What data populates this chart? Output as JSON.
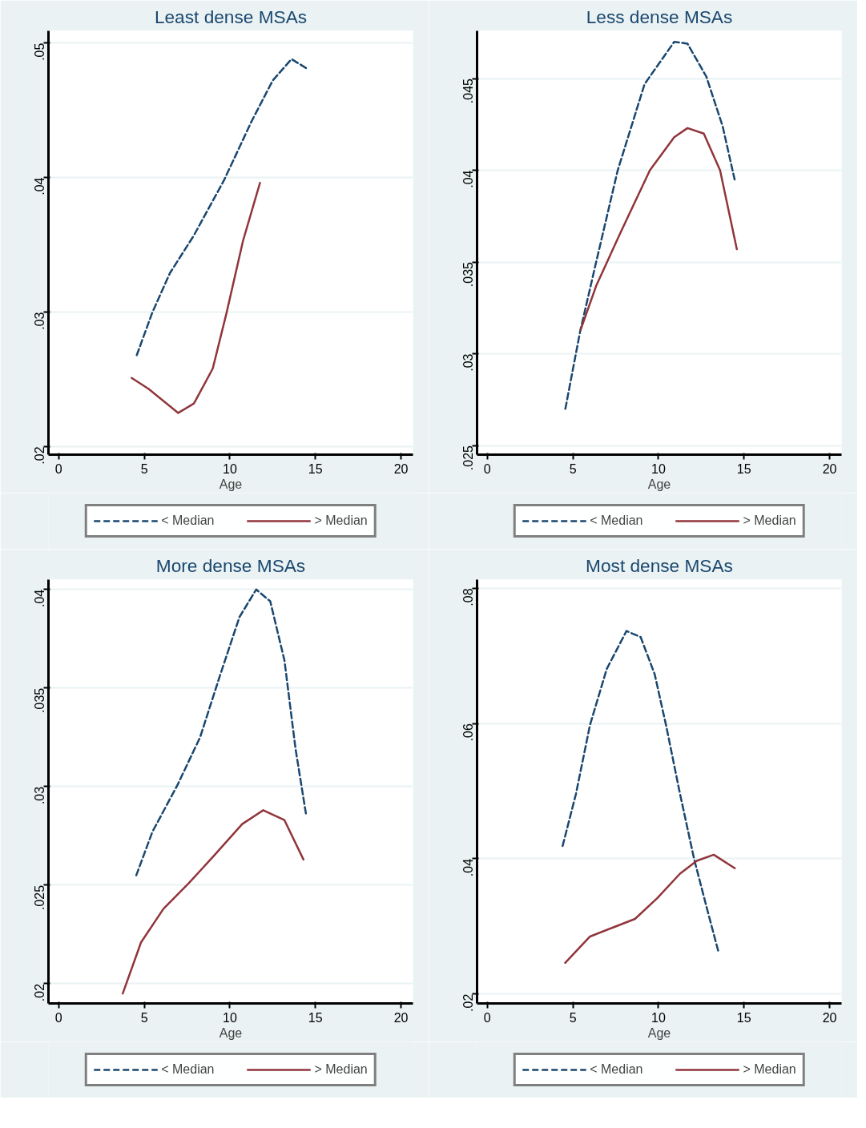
{
  "chart_data": [
    {
      "type": "line",
      "title": "Least dense MSAs",
      "xlabel": "Age",
      "xlim": [
        -0.6,
        20.7
      ],
      "xticks": [
        0,
        5,
        10,
        15,
        20
      ],
      "ylim": [
        0.0194,
        0.0509
      ],
      "yticks": [
        {
          "value": 0.02,
          "label": ".02"
        },
        {
          "value": 0.03,
          "label": ".03"
        },
        {
          "value": 0.04,
          "label": ".04"
        },
        {
          "value": 0.05,
          "label": ".05"
        }
      ],
      "grid": "y",
      "legend": "bottom",
      "series": [
        {
          "name": "< Median",
          "color": "#1a476f",
          "line_style": "dashed",
          "x": [
            4.56,
            5.48,
            6.5,
            7.9,
            9.66,
            11.24,
            12.5,
            13.6,
            14.5
          ],
          "values": [
            0.0268,
            0.03,
            0.0329,
            0.0357,
            0.0398,
            0.0441,
            0.0472,
            0.0488,
            0.0481
          ]
        },
        {
          "name": "> Median",
          "color": "#90353b",
          "line_style": "solid",
          "x": [
            4.26,
            5.24,
            6.98,
            7.9,
            9.0,
            9.8,
            10.77,
            11.76
          ],
          "values": [
            0.0251,
            0.0243,
            0.0225,
            0.0232,
            0.0258,
            0.0299,
            0.0353,
            0.0396
          ]
        }
      ]
    },
    {
      "type": "line",
      "title": "Less dense MSAs",
      "xlabel": "Age",
      "xlim": [
        -0.6,
        20.7
      ],
      "xticks": [
        0,
        5,
        10,
        15,
        20
      ],
      "ylim": [
        0.0245,
        0.0476
      ],
      "yticks": [
        {
          "value": 0.025,
          "label": ".025"
        },
        {
          "value": 0.03,
          "label": ".03"
        },
        {
          "value": 0.035,
          "label": ".035"
        },
        {
          "value": 0.04,
          "label": ".04"
        },
        {
          "value": 0.045,
          "label": ".045"
        }
      ],
      "grid": "y",
      "legend": "bottom",
      "series": [
        {
          "name": "< Median",
          "color": "#1a476f",
          "line_style": "dashed",
          "x": [
            4.56,
            5.42,
            6.36,
            7.62,
            9.19,
            10.92,
            11.7,
            12.8,
            13.75,
            14.45
          ],
          "values": [
            0.027,
            0.0312,
            0.035,
            0.04,
            0.0447,
            0.047,
            0.0469,
            0.0451,
            0.0424,
            0.0395
          ]
        },
        {
          "name": "> Median",
          "color": "#90353b",
          "line_style": "solid",
          "x": [
            5.45,
            6.36,
            7.78,
            9.5,
            10.92,
            11.7,
            12.65,
            13.6,
            14.58
          ],
          "values": [
            0.0313,
            0.0337,
            0.0366,
            0.04,
            0.0418,
            0.0423,
            0.042,
            0.04,
            0.0357
          ]
        }
      ]
    },
    {
      "type": "line",
      "title": "More dense MSAs",
      "xlabel": "Age",
      "xlim": [
        -0.6,
        20.7
      ],
      "xticks": [
        0,
        5,
        10,
        15,
        20
      ],
      "ylim": [
        0.019,
        0.0405
      ],
      "yticks": [
        {
          "value": 0.02,
          "label": ".02"
        },
        {
          "value": 0.025,
          "label": ".025"
        },
        {
          "value": 0.03,
          "label": ".03"
        },
        {
          "value": 0.035,
          "label": ".035"
        },
        {
          "value": 0.04,
          "label": ".04"
        }
      ],
      "grid": "y",
      "legend": "bottom",
      "series": [
        {
          "name": "< Median",
          "color": "#1a476f",
          "line_style": "dashed",
          "x": [
            4.53,
            5.47,
            6.95,
            8.26,
            9.41,
            10.56,
            11.54,
            12.36,
            13.19,
            13.84,
            14.45
          ],
          "values": [
            0.0255,
            0.0277,
            0.0301,
            0.0325,
            0.0356,
            0.0386,
            0.04,
            0.0394,
            0.0364,
            0.0319,
            0.0286
          ]
        },
        {
          "name": "> Median",
          "color": "#90353b",
          "line_style": "solid",
          "x": [
            3.74,
            4.81,
            6.12,
            7.6,
            9.08,
            10.72,
            11.95,
            13.19,
            14.3
          ],
          "values": [
            0.0195,
            0.0221,
            0.0238,
            0.0251,
            0.0265,
            0.0281,
            0.0288,
            0.0283,
            0.0263
          ]
        }
      ]
    },
    {
      "type": "line",
      "title": "Most dense MSAs",
      "xlabel": "Age",
      "xlim": [
        -0.6,
        20.7
      ],
      "xticks": [
        0,
        5,
        10,
        15,
        20
      ],
      "ylim": [
        0.0186,
        0.0813
      ],
      "yticks": [
        {
          "value": 0.02,
          "label": ".02"
        },
        {
          "value": 0.04,
          "label": ".04"
        },
        {
          "value": 0.06,
          "label": ".06"
        },
        {
          "value": 0.08,
          "label": ".08"
        }
      ],
      "grid": "y",
      "legend": "bottom",
      "series": [
        {
          "name": "< Median",
          "color": "#1a476f",
          "line_style": "dashed",
          "x": [
            4.4,
            5.18,
            6.0,
            6.98,
            8.13,
            8.96,
            9.78,
            10.44,
            11.26,
            12.08,
            12.9,
            13.52
          ],
          "values": [
            0.0419,
            0.0496,
            0.0598,
            0.0681,
            0.0737,
            0.0728,
            0.0673,
            0.0598,
            0.0496,
            0.04,
            0.032,
            0.0261
          ]
        },
        {
          "name": "> Median",
          "color": "#90353b",
          "line_style": "solid",
          "x": [
            4.55,
            6.0,
            7.31,
            8.63,
            9.94,
            11.26,
            12.24,
            13.23,
            14.46
          ],
          "values": [
            0.0246,
            0.0285,
            0.0298,
            0.0311,
            0.0342,
            0.0378,
            0.0397,
            0.0406,
            0.0386
          ]
        }
      ]
    }
  ]
}
